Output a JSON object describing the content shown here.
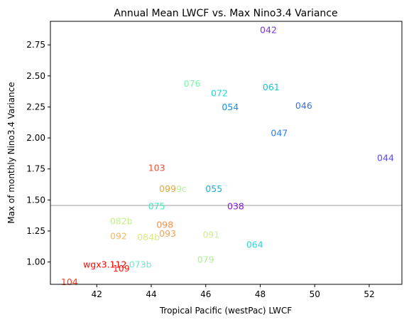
{
  "chart_data": {
    "type": "scatter",
    "title": "Annual Mean LWCF vs. Max Nino3.4 Variance",
    "xlabel": "Tropical Pacific (westPac) LWCF",
    "ylabel": "Max of monthly Nino3.4 Variance",
    "xlim": [
      40.3,
      53.2
    ],
    "ylim": [
      0.82,
      2.94
    ],
    "xticks": [
      42,
      44,
      46,
      48,
      50,
      52
    ],
    "yticks": [
      1.0,
      1.25,
      1.5,
      1.75,
      2.0,
      2.25,
      2.5,
      2.75
    ],
    "xtick_labels": [
      "42",
      "44",
      "46",
      "48",
      "50",
      "52"
    ],
    "ytick_labels": [
      "1.00",
      "1.25",
      "1.50",
      "1.75",
      "2.00",
      "2.25",
      "2.50",
      "2.75"
    ],
    "reference_line": {
      "y": 1.456,
      "color": "#bfbfbf"
    },
    "grid": false,
    "points": [
      {
        "label": "042",
        "x": 48.3,
        "y": 2.87,
        "color": "#7a32e6"
      },
      {
        "label": "076",
        "x": 45.5,
        "y": 2.44,
        "color": "#7ff5a8"
      },
      {
        "label": "072",
        "x": 46.5,
        "y": 2.36,
        "color": "#28d4d4"
      },
      {
        "label": "061",
        "x": 48.4,
        "y": 2.41,
        "color": "#16c6d8"
      },
      {
        "label": "054",
        "x": 46.9,
        "y": 2.25,
        "color": "#1e8ee8"
      },
      {
        "label": "046",
        "x": 49.6,
        "y": 2.26,
        "color": "#3a6fe6"
      },
      {
        "label": "047",
        "x": 48.7,
        "y": 2.04,
        "color": "#2b80e6"
      },
      {
        "label": "044",
        "x": 52.6,
        "y": 1.84,
        "color": "#5a4ce8"
      },
      {
        "label": "103",
        "x": 44.2,
        "y": 1.76,
        "color": "#f5503a"
      },
      {
        "label": "099c",
        "x": 44.9,
        "y": 1.59,
        "color": "#b4f09a"
      },
      {
        "label": "099",
        "x": 44.6,
        "y": 1.59,
        "color": "#e8a84a"
      },
      {
        "label": "055",
        "x": 46.3,
        "y": 1.59,
        "color": "#16b0e0"
      },
      {
        "label": "075",
        "x": 44.2,
        "y": 1.45,
        "color": "#46e6c0"
      },
      {
        "label": "038",
        "x": 47.1,
        "y": 1.45,
        "color": "#8c14e0"
      },
      {
        "label": "082b",
        "x": 42.9,
        "y": 1.33,
        "color": "#c6ee8c"
      },
      {
        "label": "098",
        "x": 44.5,
        "y": 1.3,
        "color": "#f2904a"
      },
      {
        "label": "092",
        "x": 42.8,
        "y": 1.21,
        "color": "#f0b86a"
      },
      {
        "label": "084b",
        "x": 43.9,
        "y": 1.2,
        "color": "#dee686"
      },
      {
        "label": "093",
        "x": 44.6,
        "y": 1.23,
        "color": "#f0a25a"
      },
      {
        "label": "091",
        "x": 46.2,
        "y": 1.22,
        "color": "#ccf086"
      },
      {
        "label": "064",
        "x": 47.8,
        "y": 1.14,
        "color": "#30d0dc"
      },
      {
        "label": "079",
        "x": 46.0,
        "y": 1.02,
        "color": "#a8f292"
      },
      {
        "label": "wgx3.112",
        "x": 42.3,
        "y": 0.98,
        "color": "#ff0000"
      },
      {
        "label": "073b",
        "x": 43.6,
        "y": 0.98,
        "color": "#6ee6d0"
      },
      {
        "label": "109",
        "x": 42.9,
        "y": 0.95,
        "color": "#f81c10"
      },
      {
        "label": "104",
        "x": 41.0,
        "y": 0.84,
        "color": "#ff3a1e"
      }
    ]
  }
}
